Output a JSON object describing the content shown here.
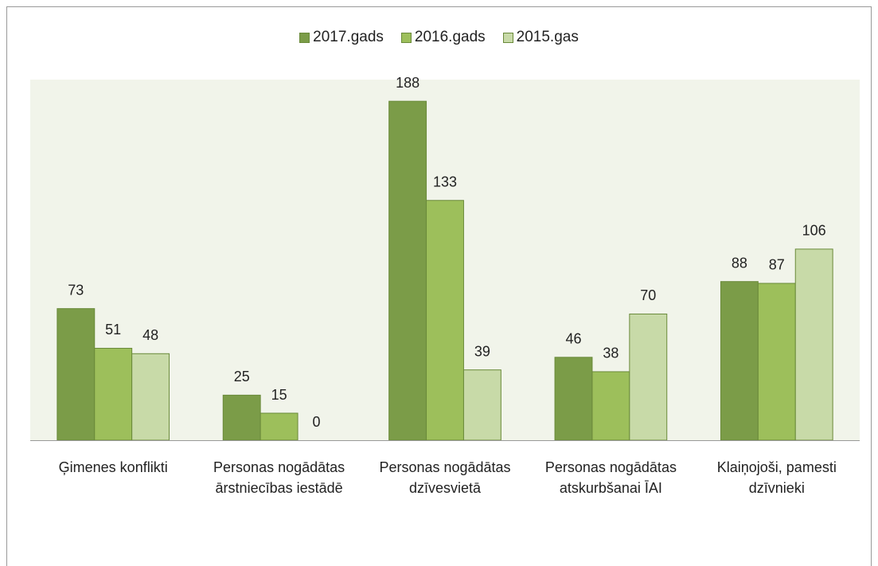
{
  "chart_data": {
    "type": "bar",
    "categories": [
      "Ģimenes konflikti",
      "Personas nogādātas ārstniecības iestādē",
      "Personas nogādātas dzīvesvietā",
      "Personas nogādātas atskurbšanai ĪAI",
      "Klaiņojoši, pamesti dzīvnieki"
    ],
    "series": [
      {
        "name": "2017.gads",
        "color": "#7b9c48",
        "values": [
          73,
          25,
          188,
          46,
          88
        ]
      },
      {
        "name": "2016.gads",
        "color": "#9dbf5b",
        "values": [
          51,
          15,
          133,
          38,
          87
        ]
      },
      {
        "name": "2015.gas",
        "color": "#c8daa8",
        "values": [
          48,
          0,
          39,
          70,
          106
        ]
      }
    ],
    "ylim": [
      0,
      200
    ],
    "legend": "top"
  }
}
